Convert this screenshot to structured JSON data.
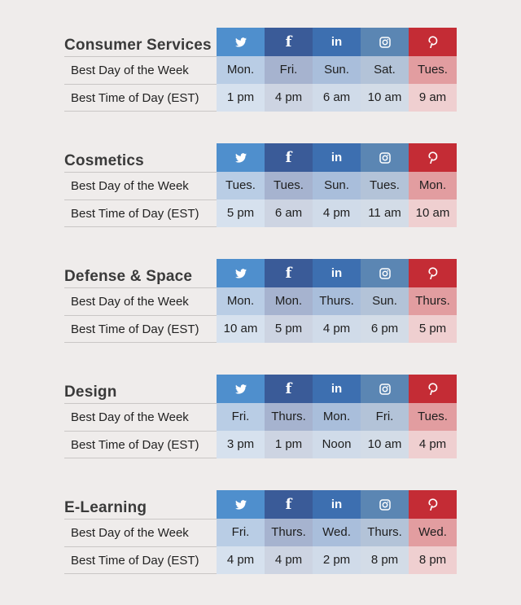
{
  "row_labels": {
    "day": "Best Day of the Week",
    "time": "Best Time of Day (EST)"
  },
  "networks": [
    {
      "name": "twitter",
      "icon": "twitter-icon",
      "color": "#4f8fcd"
    },
    {
      "name": "facebook",
      "icon": "facebook-icon",
      "color": "#3a5b98"
    },
    {
      "name": "linkedin",
      "icon": "linkedin-icon",
      "color": "#3d6fb0"
    },
    {
      "name": "instagram",
      "icon": "instagram-icon",
      "color": "#5b86b3"
    },
    {
      "name": "pinterest",
      "icon": "pinterest-icon",
      "color": "#c42c35"
    }
  ],
  "icon_text": {
    "facebook": "f",
    "linkedin": "in"
  },
  "industries": [
    {
      "title": "Consumer Services",
      "days": [
        "Mon.",
        "Fri.",
        "Sun.",
        "Sat.",
        "Tues."
      ],
      "times": [
        "1 pm",
        "4 pm",
        "6 am",
        "10 am",
        "9 am"
      ]
    },
    {
      "title": "Cosmetics",
      "days": [
        "Tues.",
        "Tues.",
        "Sun.",
        "Tues.",
        "Mon."
      ],
      "times": [
        "5 pm",
        "6 am",
        "4 pm",
        "11 am",
        "10 am"
      ]
    },
    {
      "title": "Defense & Space",
      "days": [
        "Mon.",
        "Mon.",
        "Thurs.",
        "Sun.",
        "Thurs."
      ],
      "times": [
        "10 am",
        "5 pm",
        "4 pm",
        "6 pm",
        "5 pm"
      ]
    },
    {
      "title": "Design",
      "days": [
        "Fri.",
        "Thurs.",
        "Mon.",
        "Fri.",
        "Tues."
      ],
      "times": [
        "3 pm",
        "1 pm",
        "Noon",
        "10 am",
        "4 pm"
      ]
    },
    {
      "title": "E-Learning",
      "days": [
        "Fri.",
        "Thurs.",
        "Wed.",
        "Thurs.",
        "Wed."
      ],
      "times": [
        "4 pm",
        "4 pm",
        "2 pm",
        "8 pm",
        "8 pm"
      ]
    }
  ]
}
